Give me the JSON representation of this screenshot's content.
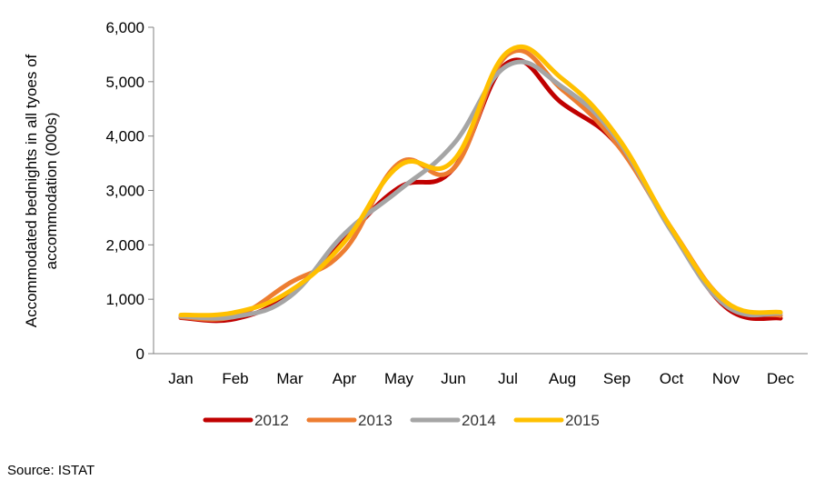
{
  "chart_data": {
    "type": "line",
    "title": "",
    "xlabel": "",
    "ylabel": "Accommodated bednights in all tyoes of accommodation (000s)",
    "ylabel_lines": [
      "Accommodated bednights in all tyoes of",
      "accommodation (000s)"
    ],
    "categories": [
      "Jan",
      "Feb",
      "Mar",
      "Apr",
      "May",
      "Jun",
      "Jul",
      "Aug",
      "Sep",
      "Oct",
      "Nov",
      "Dec"
    ],
    "ylim": [
      0,
      6000
    ],
    "yticks": [
      0,
      1000,
      2000,
      3000,
      4000,
      5000,
      6000
    ],
    "ytick_labels": [
      "0",
      "1,000",
      "2,000",
      "3,000",
      "4,000",
      "5,000",
      "6,000"
    ],
    "grid": false,
    "legend_position": "bottom",
    "series": [
      {
        "name": "2012",
        "color": "#C00000",
        "values": [
          660,
          640,
          1100,
          2100,
          3050,
          3400,
          5350,
          4600,
          3850,
          2300,
          850,
          650
        ]
      },
      {
        "name": "2013",
        "color": "#ED7D31",
        "values": [
          670,
          690,
          1300,
          1900,
          3500,
          3400,
          5500,
          4850,
          3850,
          2300,
          950,
          700
        ]
      },
      {
        "name": "2014",
        "color": "#A5A5A5",
        "values": [
          690,
          680,
          1050,
          2200,
          3000,
          3850,
          5300,
          4900,
          3950,
          2250,
          880,
          740
        ]
      },
      {
        "name": "2015",
        "color": "#FFC000",
        "values": [
          710,
          760,
          1150,
          2050,
          3450,
          3550,
          5550,
          5050,
          4000,
          2300,
          950,
          760
        ]
      }
    ]
  },
  "source_text": "Source: ISTAT"
}
